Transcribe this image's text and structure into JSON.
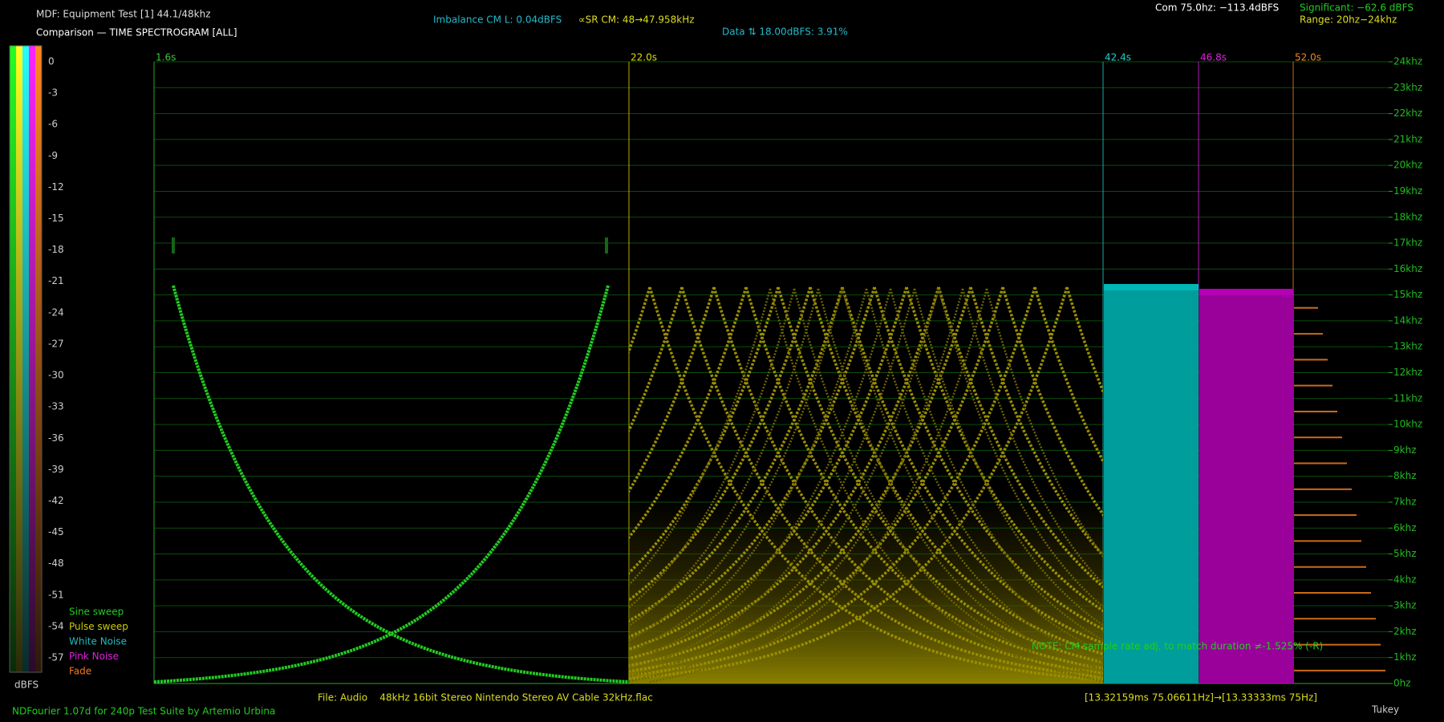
{
  "header": {
    "title": "MDF: Equipment Test [1] 44.1/48khz",
    "subtitle": "Comparison — TIME SPECTROGRAM [ALL]",
    "imbalance": "Imbalance CM L: 0.04dBFS",
    "sample_rate": "∝SR CM: 48→47.958kHz",
    "data": "Data ⇅ 18.00dBFS: 3.91%",
    "com": "Com 75.0hz: −113.4dBFS",
    "significant": "Significant: −62.6 dBFS",
    "range": "Range: 20hz−24khz"
  },
  "scale": {
    "ticks": [
      0,
      -3,
      -6,
      -9,
      -12,
      -15,
      -18,
      -21,
      -24,
      -27,
      -30,
      -33,
      -36,
      -39,
      -42,
      -45,
      -48,
      -51,
      -54,
      -57
    ],
    "unit": "dBFS"
  },
  "freq_axis": [
    "24khz",
    "23khz",
    "22khz",
    "21khz",
    "20khz",
    "19khz",
    "18khz",
    "17khz",
    "16khz",
    "15khz",
    "14khz",
    "13khz",
    "12khz",
    "11khz",
    "10khz",
    "9khz",
    "8khz",
    "7khz",
    "6khz",
    "5khz",
    "4khz",
    "3khz",
    "2khz",
    "1khz",
    "0hz"
  ],
  "time_markers": [
    {
      "label": "1.6s",
      "color": "#33cc33"
    },
    {
      "label": "22.0s",
      "color": "#dddd00"
    },
    {
      "label": "42.4s",
      "color": "#22cccc"
    },
    {
      "label": "46.8s",
      "color": "#dd22dd"
    },
    {
      "label": "52.0s",
      "color": "#ee8822"
    }
  ],
  "legend": [
    {
      "label": "Sine sweep",
      "color": "#22cc22"
    },
    {
      "label": "Pulse sweep",
      "color": "#cccc00"
    },
    {
      "label": "White Noise",
      "color": "#22bbbb"
    },
    {
      "label": "Pink Noise",
      "color": "#dd22dd"
    },
    {
      "label": "Fade",
      "color": "#ee7722"
    }
  ],
  "note": "NOTE: CM sample rate adj. to match duration ≠-1.525% (-R)",
  "footer": {
    "credit": "NDFourier 1.07d for 240p Test Suite by Artemio Urbina",
    "file": "File: Audio    48kHz 16bit Stereo Nintendo Stereo AV Cable 32kHz.flac",
    "timing": "[13.32159ms 75.06611Hz]→[13.33333ms 75Hz]",
    "window": "Tukey"
  }
}
